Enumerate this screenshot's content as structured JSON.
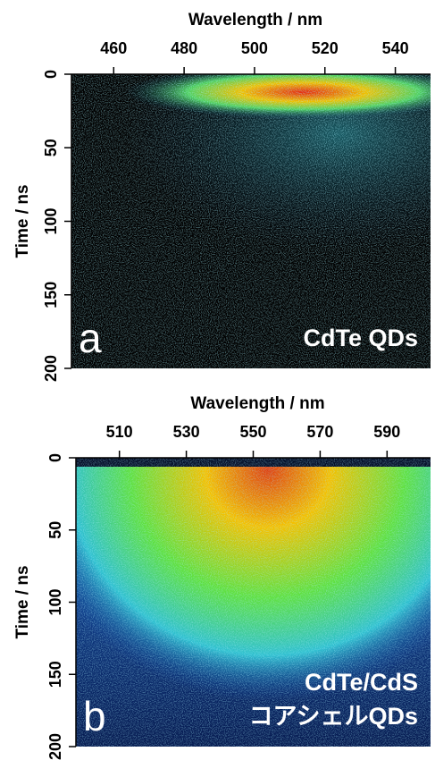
{
  "chart_data": [
    {
      "type": "heatmap",
      "panel_label": "a",
      "annotations": [
        "CdTe QDs"
      ],
      "xlabel": "Wavelength / nm",
      "ylabel": "Time / ns",
      "xlim": [
        448,
        550
      ],
      "xticks": [
        460,
        480,
        500,
        520,
        540
      ],
      "ylim": [
        0,
        200
      ],
      "yticks": [
        0,
        50,
        100,
        150,
        200
      ]
    },
    {
      "type": "heatmap",
      "panel_label": "b",
      "annotations": [
        "CdTe/CdS",
        "コアシェルQDs"
      ],
      "xlabel": "Wavelength / nm",
      "ylabel": "Time / ns",
      "xlim": [
        497,
        603
      ],
      "xticks": [
        510,
        530,
        550,
        570,
        590
      ],
      "ylim": [
        0,
        200
      ],
      "yticks": [
        0,
        50,
        100,
        150,
        200
      ]
    }
  ]
}
